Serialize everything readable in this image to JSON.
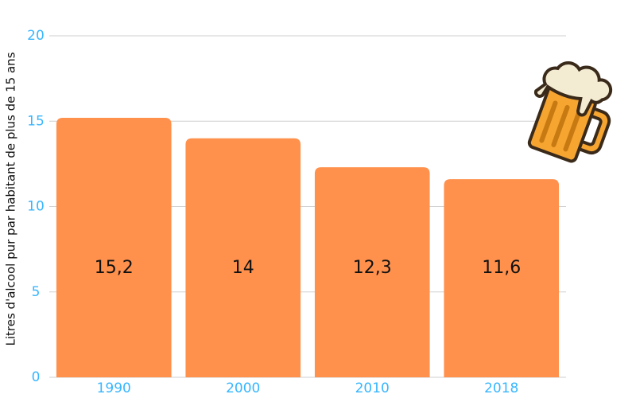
{
  "chart_data": {
    "type": "bar",
    "y_label": "Litres d'alcool pur par habitant de plus de 15 ans",
    "categories": [
      "1990",
      "2000",
      "2010",
      "2018"
    ],
    "values": [
      15.2,
      14,
      12.3,
      11.6
    ],
    "value_labels": [
      "15,2",
      "14",
      "12,3",
      "11,6"
    ],
    "color": "#ff914d",
    "ylim": [
      0,
      20
    ],
    "yticks": [
      0,
      5,
      10,
      15,
      20
    ],
    "grid": true
  }
}
